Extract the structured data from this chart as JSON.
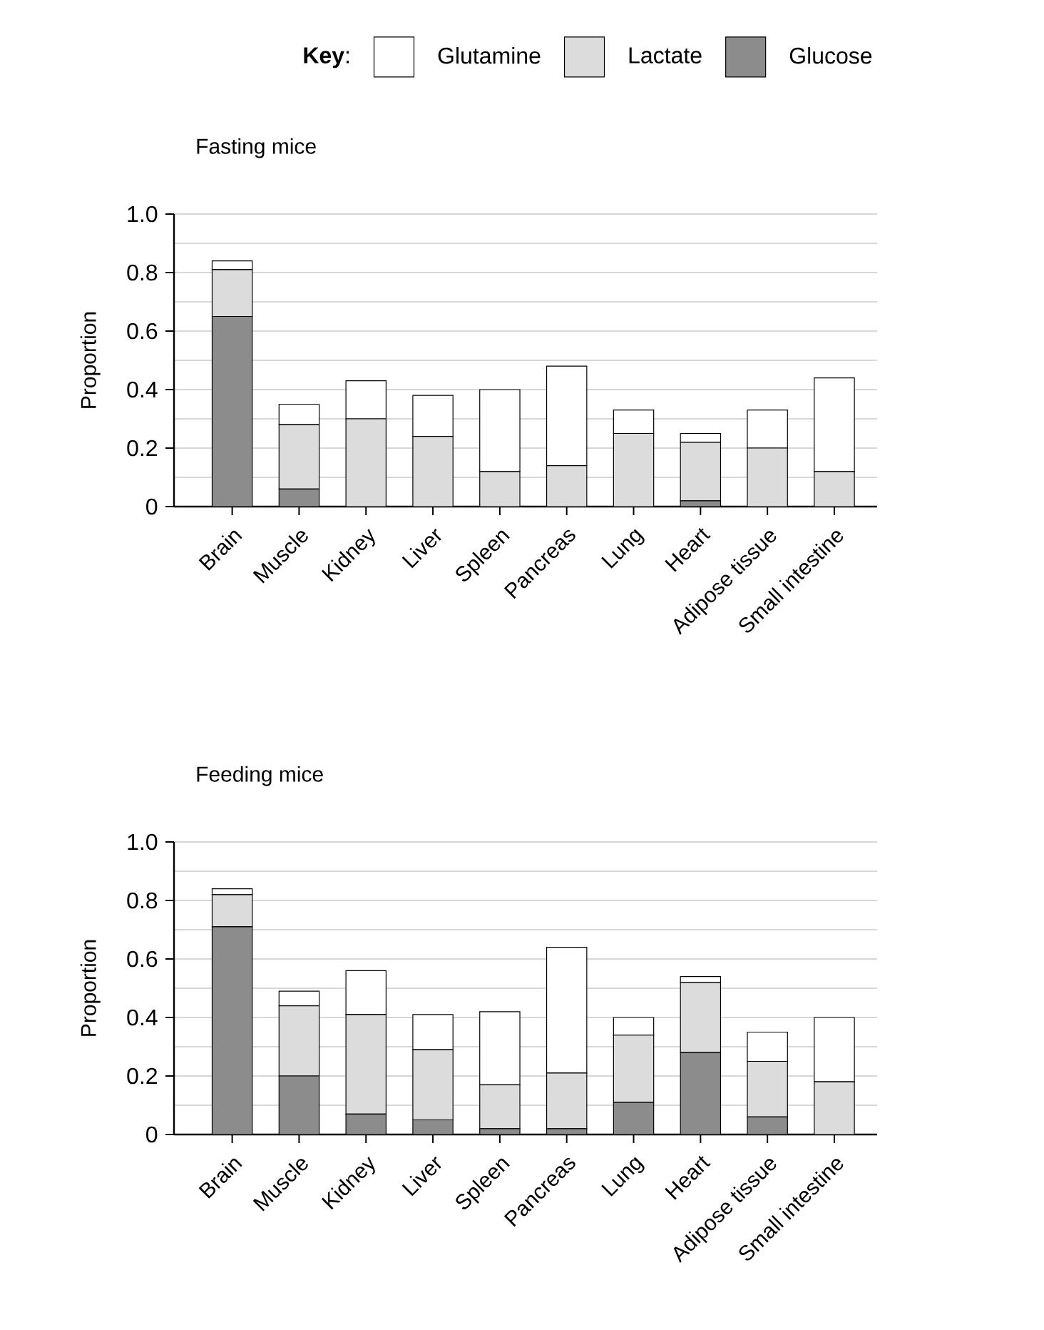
{
  "chart_data": [
    {
      "type": "bar",
      "title": "Fasting mice",
      "ylabel": "Proportion",
      "legend_title": "**Key**:",
      "legend": "top",
      "stacked": true,
      "grid": "y",
      "categories": [
        "Brain",
        "Muscle",
        "Kidney",
        "Liver",
        "Spleen",
        "Pancreas",
        "Lung",
        "Heart",
        "Adipose tissue",
        "Small intestine"
      ],
      "ylim": [
        0,
        1
      ],
      "yticks": [
        0,
        0.2,
        0.4,
        0.6,
        0.8,
        {
          "value": 1,
          "label": "1.0"
        }
      ],
      "series": [
        {
          "name": "Glucose",
          "color": "#8c8c8c",
          "values": [
            0.65,
            0.06,
            0,
            0,
            0,
            0,
            0,
            0.02,
            0,
            0
          ]
        },
        {
          "name": "Lactate",
          "color": "#dcdcdc",
          "values": [
            0.16,
            0.22,
            0.3,
            0.24,
            0.12,
            0.14,
            0.25,
            0.2,
            0.2,
            0.12
          ]
        },
        {
          "name": "Glutamine",
          "color": "#ffffff",
          "values": [
            0.03,
            0.07,
            0.13,
            0.14,
            0.28,
            0.34,
            0.08,
            0.03,
            0.13,
            0.32
          ]
        }
      ]
    },
    {
      "type": "bar",
      "title": "Feeding mice",
      "ylabel": "Proportion",
      "stacked": true,
      "grid": "y",
      "categories": [
        "Brain",
        "Muscle",
        "Kidney",
        "Liver",
        "Spleen",
        "Pancreas",
        "Lung",
        "Heart",
        "Adipose tissue",
        "Small intestine"
      ],
      "ylim": [
        0,
        1
      ],
      "yticks": [
        0,
        0.2,
        0.4,
        0.6,
        0.8,
        {
          "value": 1,
          "label": "1.0"
        }
      ],
      "series": [
        {
          "color": "#8c8c8c",
          "values": [
            0.71,
            0.2,
            0.07,
            0.05,
            0.02,
            0.02,
            0.11,
            0.28,
            0.06,
            0
          ]
        },
        {
          "color": "#dcdcdc",
          "values": [
            0.11,
            0.24,
            0.34,
            0.24,
            0.15,
            0.19,
            0.23,
            0.24,
            0.19,
            0.18
          ]
        },
        {
          "color": "#ffffff",
          "values": [
            0.02,
            0.05,
            0.15,
            0.12,
            0.25,
            0.43,
            0.06,
            0.02,
            0.1,
            0.22
          ]
        }
      ]
    }
  ]
}
